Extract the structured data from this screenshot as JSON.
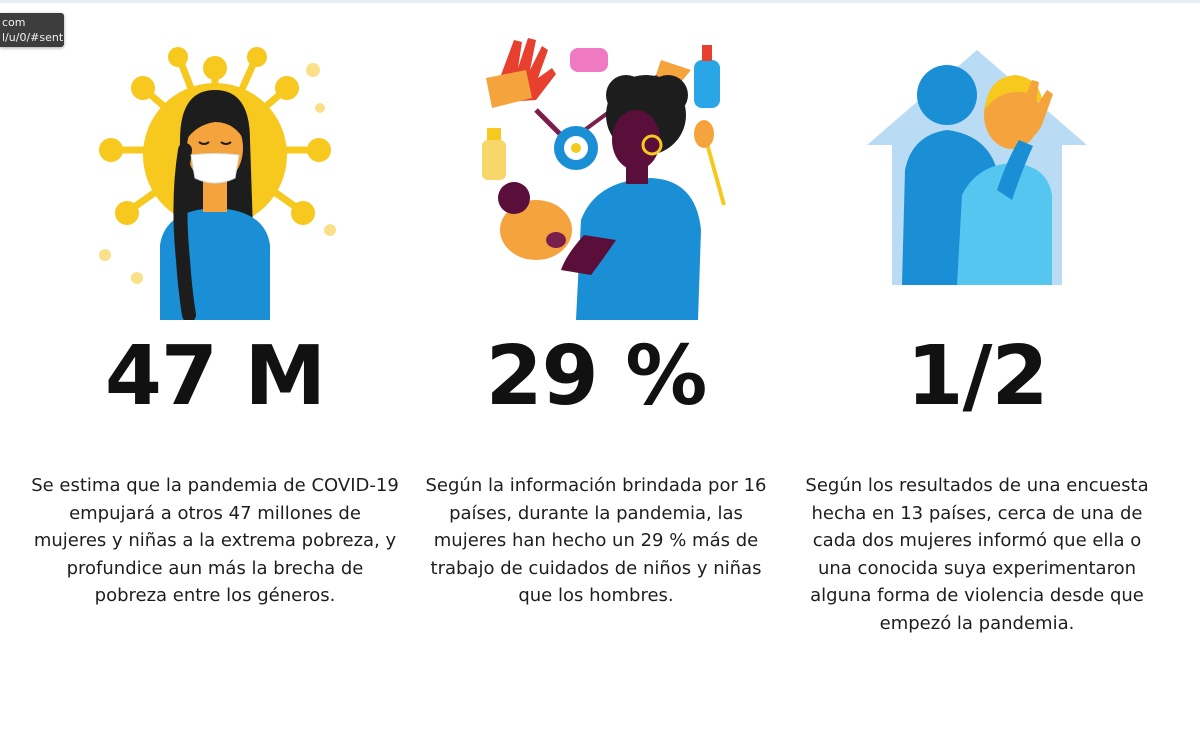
{
  "tooltip": {
    "line1": "com",
    "line2": "l/u/0/#sent"
  },
  "stats": [
    {
      "value": "47 M",
      "description": "Se estima que la pandemia de COVID-19 empujará a otros 47 millones de mujeres y niñas a la extrema pobreza, y profundice aun más la brecha de pobreza entre los géneros.",
      "illustration": "woman-with-mask-and-virus"
    },
    {
      "value": "29 %",
      "description": "Según la información brindada por 16 países, durante la pandemia, las mujeres han hecho un 29 % más de trabajo de cuidados de niños y niñas que los hombres.",
      "illustration": "woman-holding-baby-with-chores"
    },
    {
      "value": "1/2",
      "description": "Según los resultados de una encuesta hecha en 13 países, cerca de una de cada dos mujeres informó que ella o una conocida suya experimentaron alguna forma de violencia desde que empezó la pandemia.",
      "illustration": "woman-covering-face-in-house"
    }
  ],
  "colors": {
    "virus_yellow": "#f7c81e",
    "shirt_blue": "#1a8fd6",
    "skin_orange": "#f5a33c",
    "dark_purple": "#5a0f3a",
    "house_light_blue": "#b9dcf4"
  }
}
